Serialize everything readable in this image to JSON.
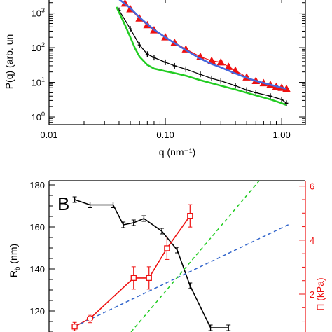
{
  "chart_data": [
    {
      "type": "scatter",
      "xscale": "log",
      "yscale": "log",
      "xlabel": "q (nm⁻¹)",
      "ylabel": "P(q) (arb. un",
      "xlim": [
        0.01,
        1.6
      ],
      "ylim": [
        0.6,
        3000
      ],
      "xticks": [
        {
          "v": 0.01,
          "label": "0.01"
        },
        {
          "v": 0.1,
          "label": "0.10"
        },
        {
          "v": 1.0,
          "label": "1.00"
        }
      ],
      "yticks": [
        {
          "v": 1,
          "base": "10",
          "exp": "0"
        },
        {
          "v": 10,
          "base": "10",
          "exp": "1"
        },
        {
          "v": 100,
          "base": "10",
          "exp": "2"
        },
        {
          "v": 1000,
          "base": "10",
          "exp": "3"
        }
      ],
      "series": [
        {
          "kind": "markers-triangle",
          "color": "#ee1111",
          "x": [
            0.045,
            0.05,
            0.06,
            0.07,
            0.08,
            0.1,
            0.12,
            0.15,
            0.2,
            0.25,
            0.3,
            0.35,
            0.4,
            0.5,
            0.6,
            0.7,
            0.8,
            0.9,
            1.0,
            1.1
          ],
          "y": [
            1900,
            1300,
            700,
            450,
            320,
            200,
            140,
            90,
            55,
            42,
            38,
            28,
            22,
            14,
            11,
            9.5,
            8.5,
            7.5,
            7,
            6.5
          ]
        },
        {
          "kind": "fit-line",
          "color": "#4466dd",
          "x": [
            0.04,
            0.05,
            0.06,
            0.07,
            0.08,
            0.1,
            0.12,
            0.15,
            0.2,
            0.25,
            0.3,
            0.4,
            0.5,
            0.6,
            0.8,
            1.0,
            1.1
          ],
          "y": [
            2500,
            1400,
            750,
            480,
            330,
            200,
            135,
            85,
            48,
            34,
            27,
            18,
            13.5,
            11,
            8.5,
            7,
            6.5
          ]
        },
        {
          "kind": "markers-errbar",
          "color": "#000000",
          "x": [
            0.04,
            0.05,
            0.06,
            0.07,
            0.08,
            0.1,
            0.12,
            0.15,
            0.2,
            0.25,
            0.3,
            0.4,
            0.5,
            0.6,
            0.8,
            1.0,
            1.1
          ],
          "y": [
            1200,
            350,
            120,
            65,
            52,
            38,
            30,
            24,
            17,
            13,
            11,
            8,
            6,
            5,
            4,
            3.2,
            2.5
          ]
        },
        {
          "kind": "fit-line",
          "color": "#22cc22",
          "x": [
            0.038,
            0.045,
            0.05,
            0.055,
            0.06,
            0.07,
            0.08,
            0.1,
            0.12,
            0.15,
            0.2,
            0.3,
            0.4,
            0.5,
            0.6,
            0.8,
            1.0,
            1.1
          ],
          "y": [
            1500,
            450,
            200,
            95,
            55,
            32,
            25,
            21,
            18.5,
            15.5,
            11.5,
            8,
            6.2,
            5,
            4.2,
            3.2,
            2.5,
            2.2
          ]
        }
      ]
    },
    {
      "type": "line",
      "panel_label": "B",
      "ylabel_left": {
        "base": "R",
        "sub": "b",
        "rest": " (nm)"
      },
      "ylabel_right": "Π (kPa)",
      "right_color": "#ee1111",
      "ylim_left": [
        110,
        182
      ],
      "yticks_left": [
        120,
        140,
        160,
        180
      ],
      "ylim_right": [
        0.6,
        6.2
      ],
      "yticks_right": [
        2,
        4,
        6
      ],
      "xlim": [
        0,
        10
      ],
      "series": [
        {
          "name": "Rb",
          "axis": "left",
          "color": "#000000",
          "x": [
            1,
            1.6,
            2.5,
            2.9,
            3.3,
            3.7,
            4.4,
            5.0,
            5.5,
            6.3,
            7.0
          ],
          "y": [
            173,
            170.5,
            170.5,
            161,
            162,
            164,
            158,
            149,
            132,
            112,
            112
          ]
        },
        {
          "name": "Pi",
          "axis": "right",
          "color": "#ee1111",
          "x": [
            1.0,
            1.6,
            3.3,
            3.9,
            4.6,
            5.5
          ],
          "y": [
            0.8,
            1.1,
            2.6,
            2.6,
            3.7,
            4.9
          ]
        },
        {
          "name": "fit-blue",
          "axis": "right",
          "color": "#3366cc",
          "dashed": true,
          "x": [
            1.0,
            9.4
          ],
          "y": [
            0.8,
            4.6
          ]
        },
        {
          "name": "fit-green",
          "axis": "right",
          "color": "#22cc22",
          "dashed": true,
          "x": [
            3.2,
            8.2
          ],
          "y": [
            0.6,
            6.2
          ]
        }
      ]
    }
  ]
}
